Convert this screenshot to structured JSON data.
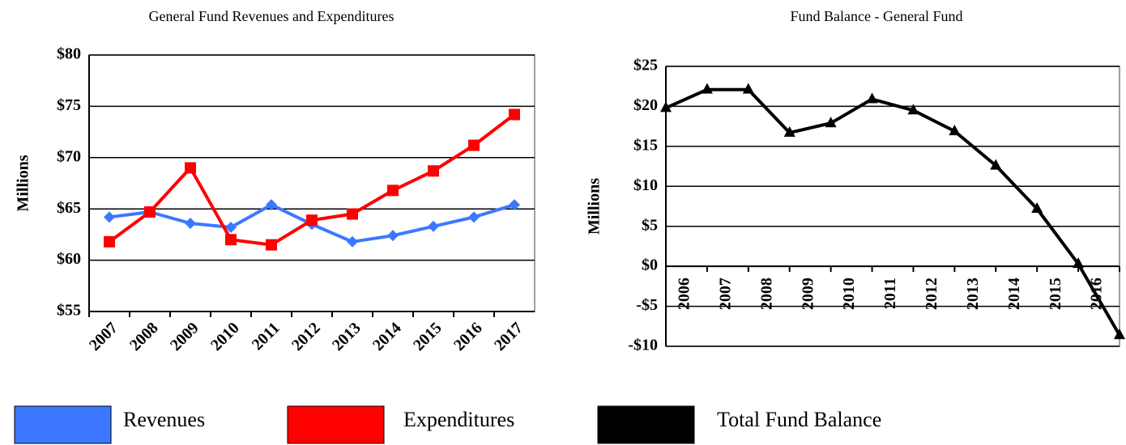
{
  "chart_data": [
    {
      "type": "line",
      "title": "General Fund Revenues and Expenditures",
      "y_label": "Millions",
      "categories": [
        "2007",
        "2008",
        "2009",
        "2010",
        "2011",
        "2012",
        "2013",
        "2014",
        "2015",
        "2016",
        "2017"
      ],
      "series": [
        {
          "name": "Revenues",
          "color": "#3c78ff",
          "marker": "diamond",
          "values": [
            64.2,
            64.7,
            63.6,
            63.2,
            65.4,
            63.5,
            61.8,
            62.4,
            63.3,
            64.2,
            65.4
          ]
        },
        {
          "name": "Expenditures",
          "color": "#ff0000",
          "marker": "square",
          "values": [
            61.8,
            64.7,
            69.0,
            62.0,
            61.5,
            63.9,
            64.5,
            66.8,
            68.7,
            71.2,
            74.2
          ]
        }
      ],
      "ylim": [
        55,
        80
      ],
      "yticks": [
        {
          "value": 55,
          "label": "$55"
        },
        {
          "value": 60,
          "label": "$60"
        },
        {
          "value": 65,
          "label": "$65"
        },
        {
          "value": 70,
          "label": "$70"
        },
        {
          "value": 75,
          "label": "$75"
        },
        {
          "value": 80,
          "label": "$80"
        }
      ],
      "grid": true
    },
    {
      "type": "line",
      "title": "Fund Balance - General Fund",
      "y_label": "Millions",
      "categories": [
        "2006",
        "2007",
        "2008",
        "2009",
        "2010",
        "2011",
        "2012",
        "2013",
        "2014",
        "2015",
        "2016",
        null
      ],
      "series": [
        {
          "name": "Total Fund Balance",
          "color": "#000000",
          "marker": "triangle",
          "values": [
            19.8,
            22.1,
            22.1,
            16.7,
            17.9,
            20.9,
            19.5,
            16.9,
            12.6,
            7.2,
            0.3,
            -8.6
          ]
        }
      ],
      "ylim": [
        -10,
        25
      ],
      "yticks": [
        {
          "value": -10,
          "label": "-$10"
        },
        {
          "value": -5,
          "label": "-$5"
        },
        {
          "value": 0,
          "label": "$0"
        },
        {
          "value": 5,
          "label": "$5"
        },
        {
          "value": 10,
          "label": "$10"
        },
        {
          "value": 15,
          "label": "$15"
        },
        {
          "value": 20,
          "label": "$20"
        },
        {
          "value": 25,
          "label": "$25"
        }
      ],
      "grid": true
    }
  ]
}
